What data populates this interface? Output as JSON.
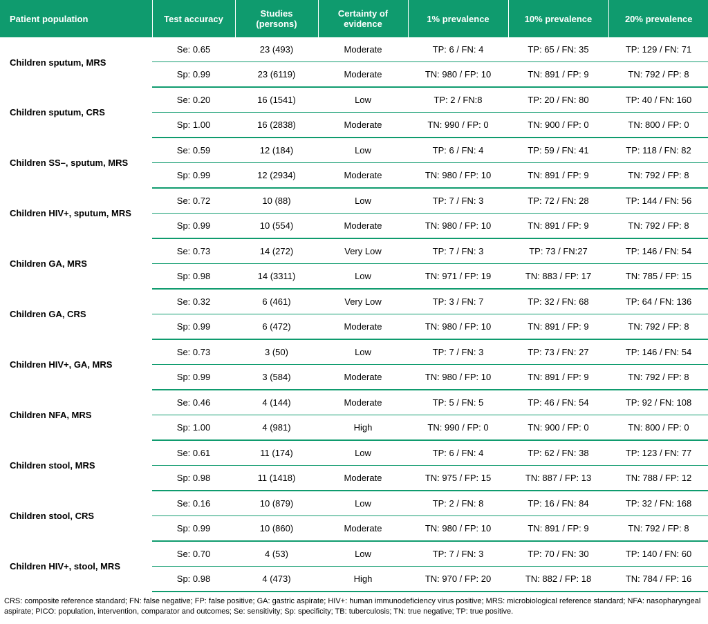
{
  "colors": {
    "header_bg": "#0f9b6e",
    "header_text": "#ffffff",
    "border": "#0f9b6e",
    "body_text": "#000000",
    "bg": "#ffffff"
  },
  "headers": {
    "population": "Patient population",
    "accuracy": "Test accuracy",
    "studies": "Studies (persons)",
    "certainty": "Certainty of evidence",
    "prev1": "1% prevalence",
    "prev10": "10% prevalence",
    "prev20": "20% prevalence"
  },
  "rows": [
    {
      "population": "Children sputum, MRS",
      "se": {
        "accuracy": "Se: 0.65",
        "studies": "23 (493)",
        "certainty": "Moderate",
        "p1": "TP: 6 / FN: 4",
        "p10": "TP: 65 / FN: 35",
        "p20": "TP: 129 / FN: 71"
      },
      "sp": {
        "accuracy": "Sp: 0.99",
        "studies": "23 (6119)",
        "certainty": "Moderate",
        "p1": "TN: 980 / FP: 10",
        "p10": "TN: 891 / FP: 9",
        "p20": "TN: 792 / FP: 8"
      }
    },
    {
      "population": "Children sputum, CRS",
      "se": {
        "accuracy": "Se: 0.20",
        "studies": "16 (1541)",
        "certainty": "Low",
        "p1": "TP: 2 / FN:8",
        "p10": "TP: 20 / FN: 80",
        "p20": "TP: 40 / FN: 160"
      },
      "sp": {
        "accuracy": "Sp: 1.00",
        "studies": "16 (2838)",
        "certainty": "Moderate",
        "p1": "TN: 990 / FP: 0",
        "p10": "TN: 900 / FP: 0",
        "p20": "TN: 800 / FP: 0"
      }
    },
    {
      "population": "Children SS–, sputum, MRS",
      "se": {
        "accuracy": "Se: 0.59",
        "studies": "12 (184)",
        "certainty": "Low",
        "p1": "TP: 6 / FN: 4",
        "p10": "TP: 59 / FN: 41",
        "p20": "TP: 118 / FN: 82"
      },
      "sp": {
        "accuracy": "Sp: 0.99",
        "studies": "12 (2934)",
        "certainty": "Moderate",
        "p1": "TN: 980 / FP: 10",
        "p10": "TN: 891 / FP: 9",
        "p20": "TN: 792 / FP: 8"
      }
    },
    {
      "population": "Children HIV+, sputum, MRS",
      "se": {
        "accuracy": "Se: 0.72",
        "studies": "10 (88)",
        "certainty": "Low",
        "p1": "TP: 7 / FN: 3",
        "p10": "TP: 72 / FN: 28",
        "p20": "TP: 144 / FN: 56"
      },
      "sp": {
        "accuracy": "Sp: 0.99",
        "studies": "10 (554)",
        "certainty": "Moderate",
        "p1": "TN: 980 / FP: 10",
        "p10": "TN: 891 / FP: 9",
        "p20": "TN: 792 / FP: 8"
      }
    },
    {
      "population": "Children GA, MRS",
      "se": {
        "accuracy": "Se: 0.73",
        "studies": "14 (272)",
        "certainty": "Very Low",
        "p1": "TP: 7 / FN: 3",
        "p10": "TP: 73 / FN:27",
        "p20": "TP: 146 / FN: 54"
      },
      "sp": {
        "accuracy": "Sp: 0.98",
        "studies": "14 (3311)",
        "certainty": "Low",
        "p1": "TN: 971 / FP: 19",
        "p10": "TN: 883 / FP: 17",
        "p20": "TN: 785 / FP: 15"
      }
    },
    {
      "population": "Children GA, CRS",
      "se": {
        "accuracy": "Se: 0.32",
        "studies": "6 (461)",
        "certainty": "Very Low",
        "p1": "TP: 3 / FN: 7",
        "p10": "TP: 32 / FN: 68",
        "p20": "TP: 64 / FN: 136"
      },
      "sp": {
        "accuracy": "Sp: 0.99",
        "studies": "6 (472)",
        "certainty": "Moderate",
        "p1": "TN: 980 / FP: 10",
        "p10": "TN: 891 / FP: 9",
        "p20": "TN: 792 / FP: 8"
      }
    },
    {
      "population": "Children HIV+, GA, MRS",
      "se": {
        "accuracy": "Se: 0.73",
        "studies": "3 (50)",
        "certainty": "Low",
        "p1": "TP: 7 / FN: 3",
        "p10": "TP: 73 / FN: 27",
        "p20": "TP: 146 / FN: 54"
      },
      "sp": {
        "accuracy": "Sp: 0.99",
        "studies": "3 (584)",
        "certainty": "Moderate",
        "p1": "TN: 980 / FP: 10",
        "p10": "TN: 891 / FP: 9",
        "p20": "TN: 792 / FP: 8"
      }
    },
    {
      "population": "Children NFA, MRS",
      "se": {
        "accuracy": "Se: 0.46",
        "studies": "4 (144)",
        "certainty": "Moderate",
        "p1": "TP: 5 / FN: 5",
        "p10": "TP: 46 / FN: 54",
        "p20": "TP: 92 / FN: 108"
      },
      "sp": {
        "accuracy": "Sp: 1.00",
        "studies": "4 (981)",
        "certainty": "High",
        "p1": "TN: 990 / FP: 0",
        "p10": "TN: 900 / FP: 0",
        "p20": "TN: 800 / FP: 0"
      }
    },
    {
      "population": "Children stool, MRS",
      "se": {
        "accuracy": "Se: 0.61",
        "studies": "11 (174)",
        "certainty": "Low",
        "p1": "TP: 6 / FN: 4",
        "p10": "TP: 62 / FN: 38",
        "p20": "TP: 123 / FN: 77"
      },
      "sp": {
        "accuracy": "Sp: 0.98",
        "studies": "11 (1418)",
        "certainty": "Moderate",
        "p1": "TN: 975 / FP: 15",
        "p10": "TN: 887 / FP: 13",
        "p20": "TN: 788 / FP: 12"
      }
    },
    {
      "population": "Children stool, CRS",
      "se": {
        "accuracy": "Se: 0.16",
        "studies": "10 (879)",
        "certainty": "Low",
        "p1": "TP: 2 / FN: 8",
        "p10": "TP: 16 / FN: 84",
        "p20": "TP: 32 / FN: 168"
      },
      "sp": {
        "accuracy": "Sp: 0.99",
        "studies": "10 (860)",
        "certainty": "Moderate",
        "p1": "TN: 980 / FP: 10",
        "p10": "TN: 891 / FP: 9",
        "p20": "TN: 792 / FP: 8"
      }
    },
    {
      "population": "Children HIV+, stool, MRS",
      "se": {
        "accuracy": "Se: 0.70",
        "studies": "4 (53)",
        "certainty": "Low",
        "p1": "TP: 7 / FN: 3",
        "p10": "TP: 70 / FN: 30",
        "p20": "TP: 140 / FN: 60"
      },
      "sp": {
        "accuracy": "Sp: 0.98",
        "studies": "4 (473)",
        "certainty": "High",
        "p1": "TN: 970 / FP: 20",
        "p10": "TN: 882 / FP: 18",
        "p20": "TN: 784 / FP: 16"
      }
    }
  ],
  "footnote": "CRS: composite reference standard; FN: false negative; FP: false positive; GA: gastric aspirate; HIV+: human immunodeficiency virus positive; MRS: microbiological reference standard; NFA: nasopharyngeal aspirate; PICO: population, intervention, comparator and outcomes; Se: sensitivity; Sp: specificity; TB: tuberculosis; TN: true negative; TP: true positive."
}
